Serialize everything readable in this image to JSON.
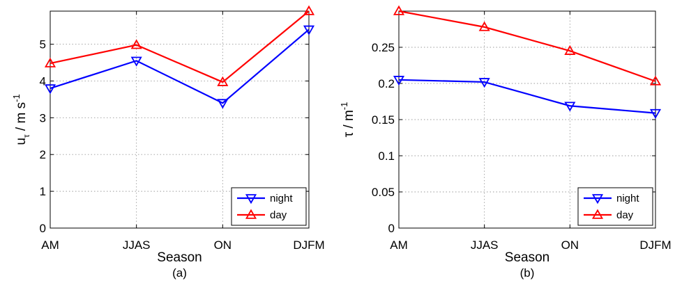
{
  "chart_data": [
    {
      "type": "line",
      "panel_label": "(a)",
      "xlabel": "Season",
      "ylabel": {
        "base": "u",
        "base_sub": "τ",
        "unit": " / m s",
        "unit_sup": "-1"
      },
      "categories": [
        "AM",
        "JJAS",
        "ON",
        "DJFM"
      ],
      "ylim": [
        0,
        5.9
      ],
      "yticks": [
        0,
        1,
        2,
        3,
        4,
        5
      ],
      "ytick_labels": [
        "0",
        "1",
        "2",
        "3",
        "4",
        "5"
      ],
      "grid": true,
      "legend_position": "bottom-right",
      "series": [
        {
          "name": "night",
          "color": "#0000ff",
          "marker": "triangle-down",
          "values": [
            3.8,
            4.55,
            3.4,
            5.4
          ]
        },
        {
          "name": "day",
          "color": "#ff0000",
          "marker": "triangle-up",
          "values": [
            4.48,
            4.98,
            3.97,
            5.9
          ]
        }
      ]
    },
    {
      "type": "line",
      "panel_label": "(b)",
      "xlabel": "Season",
      "ylabel": {
        "base": "τ",
        "unit": " / m",
        "unit_sup": "-1"
      },
      "categories": [
        "AM",
        "JJAS",
        "ON",
        "DJFM"
      ],
      "ylim": [
        0,
        0.3
      ],
      "yticks": [
        0,
        0.05,
        0.1,
        0.15,
        0.2,
        0.25
      ],
      "ytick_labels": [
        "0",
        "0.05",
        "0.1",
        "0.15",
        "0.2",
        "0.25"
      ],
      "grid": true,
      "legend_position": "bottom-right",
      "series": [
        {
          "name": "night",
          "color": "#0000ff",
          "marker": "triangle-down",
          "values": [
            0.205,
            0.202,
            0.169,
            0.159
          ]
        },
        {
          "name": "day",
          "color": "#ff0000",
          "marker": "triangle-up",
          "values": [
            0.3,
            0.278,
            0.245,
            0.203
          ]
        }
      ]
    }
  ]
}
